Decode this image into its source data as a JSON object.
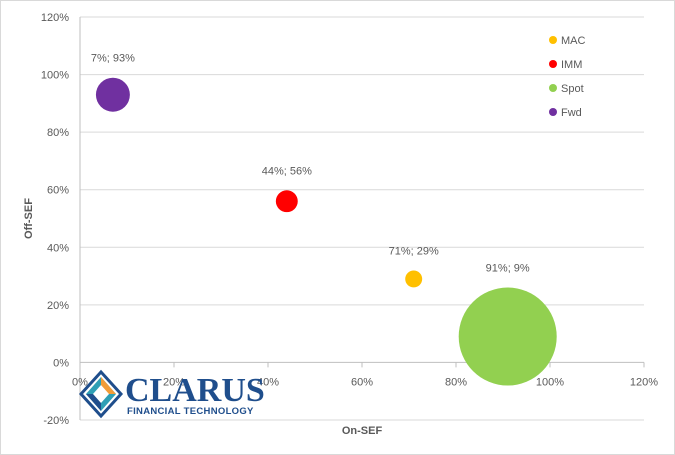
{
  "chart_data": {
    "type": "scatter",
    "title": "",
    "xlabel": "On-SEF",
    "ylabel": "Off-SEF",
    "xlim": [
      0,
      120
    ],
    "ylim": [
      -20,
      120
    ],
    "x_ticks": [
      {
        "value": 0,
        "label": "0%"
      },
      {
        "value": 20,
        "label": "20%"
      },
      {
        "value": 40,
        "label": "40%"
      },
      {
        "value": 60,
        "label": "60%"
      },
      {
        "value": 80,
        "label": "80%"
      },
      {
        "value": 100,
        "label": "100%"
      },
      {
        "value": 120,
        "label": "120%"
      }
    ],
    "y_ticks": [
      {
        "value": -20,
        "label": "-20%"
      },
      {
        "value": 0,
        "label": "0%"
      },
      {
        "value": 20,
        "label": "20%"
      },
      {
        "value": 40,
        "label": "40%"
      },
      {
        "value": 60,
        "label": "60%"
      },
      {
        "value": 80,
        "label": "80%"
      },
      {
        "value": 100,
        "label": "100%"
      },
      {
        "value": 120,
        "label": "120%"
      }
    ],
    "grid": true,
    "legend_position": "top-right",
    "bubble_size_relative": true,
    "series": [
      {
        "name": "MAC",
        "color": "#ffc000",
        "x": 71,
        "y": 29,
        "size": 3,
        "label": "71%; 29%"
      },
      {
        "name": "IMM",
        "color": "#ff0000",
        "x": 44,
        "y": 56,
        "size": 5,
        "label": "44%; 56%"
      },
      {
        "name": "Spot",
        "color": "#92d050",
        "x": 91,
        "y": 9,
        "size": 100,
        "label": "91%; 9%"
      },
      {
        "name": "Fwd",
        "color": "#7030a0",
        "x": 7,
        "y": 93,
        "size": 12,
        "label": "7%; 93%"
      }
    ]
  },
  "logo": {
    "name": "CLARUS",
    "subtitle": "FINANCIAL TECHNOLOGY",
    "colors": {
      "blue": "#1f4e8c",
      "orange": "#f29c38",
      "teal": "#2e9fb5"
    }
  }
}
